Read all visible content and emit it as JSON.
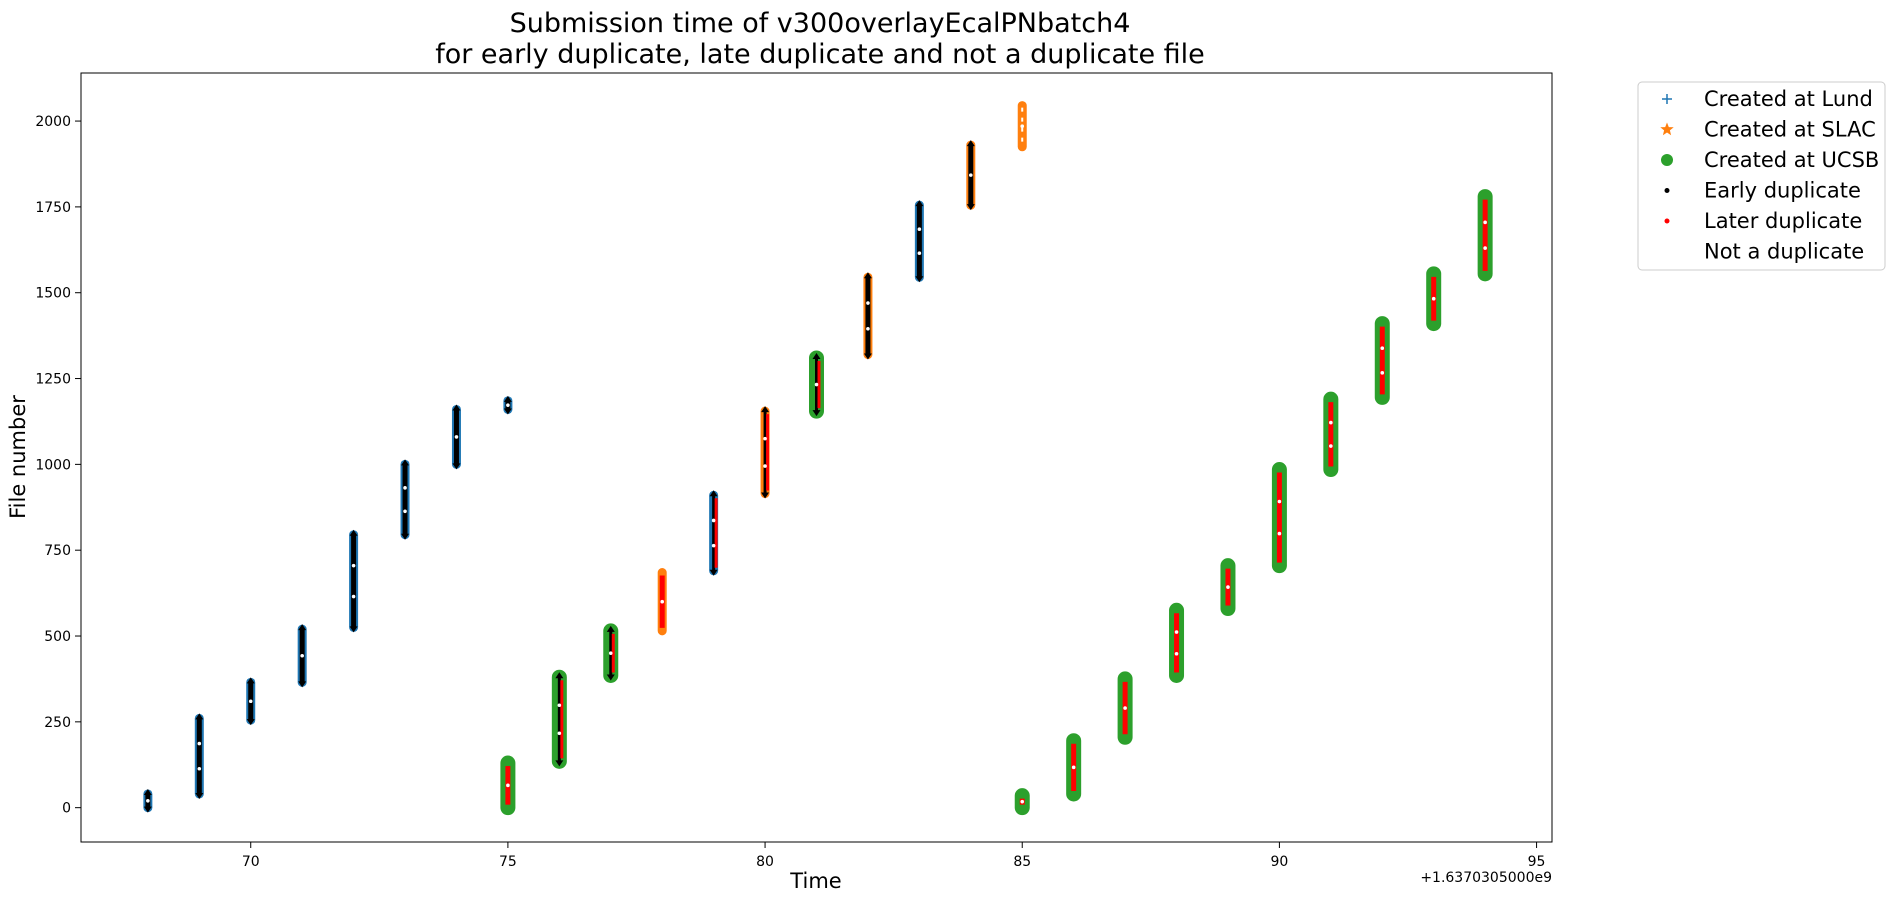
{
  "chart_data": {
    "type": "scatter",
    "title": "Submission time of v300overlayEcalPNbatch4",
    "subtitle": "for early duplicate, late duplicate and not a duplicate file",
    "xlabel": "Time",
    "ylabel": "File number",
    "x_offset_label": "+1.6370305000e9",
    "xlim": [
      66.7,
      95.3
    ],
    "ylim": [
      -100,
      2140
    ],
    "xticks": [
      70,
      75,
      80,
      85,
      90,
      95
    ],
    "yticks": [
      0,
      250,
      500,
      750,
      1000,
      1250,
      1500,
      1750,
      2000
    ],
    "grid": false,
    "legend_placement": "outside top-right",
    "legend": [
      {
        "label": "Created at Lund",
        "marker": "plus",
        "color": "#1f77b4"
      },
      {
        "label": "Created at SLAC",
        "marker": "star",
        "color": "#ff7f0e"
      },
      {
        "label": "Created at UCSB",
        "marker": "circle",
        "color": "#2ca02c"
      },
      {
        "label": "Early duplicate",
        "marker": "dot",
        "color": "#000000"
      },
      {
        "label": "Later duplicate",
        "marker": "dot",
        "color": "#ff0000"
      },
      {
        "label": "Not a duplicate",
        "marker": "dot",
        "color": "#ffffff"
      }
    ],
    "columns": [
      {
        "x": 68,
        "ymin": 0,
        "ymax": 40,
        "origin": "Lund",
        "dup": "early"
      },
      {
        "x": 69,
        "ymin": 40,
        "ymax": 260,
        "origin": "Lund",
        "dup": "early"
      },
      {
        "x": 70,
        "ymin": 255,
        "ymax": 365,
        "origin": "Lund",
        "dup": "early"
      },
      {
        "x": 71,
        "ymin": 365,
        "ymax": 520,
        "origin": "Lund",
        "dup": "early"
      },
      {
        "x": 72,
        "ymin": 525,
        "ymax": 795,
        "origin": "Lund",
        "dup": "early"
      },
      {
        "x": 73,
        "ymin": 795,
        "ymax": 1000,
        "origin": "Lund",
        "dup": "early"
      },
      {
        "x": 74,
        "ymin": 1000,
        "ymax": 1160,
        "origin": "Lund",
        "dup": "early"
      },
      {
        "x": 75,
        "ymin": 1160,
        "ymax": 1185,
        "origin": "Lund",
        "dup": "early"
      },
      {
        "x": 75,
        "ymin": 0,
        "ymax": 130,
        "origin": "UCSB",
        "dup": "later"
      },
      {
        "x": 76,
        "ymin": 135,
        "ymax": 380,
        "origin": "UCSB",
        "dup": "mixed"
      },
      {
        "x": 77,
        "ymin": 385,
        "ymax": 515,
        "origin": "UCSB",
        "dup": "mixed"
      },
      {
        "x": 78,
        "ymin": 515,
        "ymax": 685,
        "origin": "SLAC",
        "dup": "later"
      },
      {
        "x": 79,
        "ymin": 690,
        "ymax": 910,
        "origin": "Lund",
        "dup": "mixed"
      },
      {
        "x": 80,
        "ymin": 915,
        "ymax": 1155,
        "origin": "SLAC",
        "dup": "mixed"
      },
      {
        "x": 81,
        "ymin": 1155,
        "ymax": 1310,
        "origin": "UCSB",
        "dup": "mixed"
      },
      {
        "x": 82,
        "ymin": 1320,
        "ymax": 1545,
        "origin": "SLAC",
        "dup": "early"
      },
      {
        "x": 83,
        "ymin": 1545,
        "ymax": 1755,
        "origin": "Lund",
        "dup": "early"
      },
      {
        "x": 84,
        "ymin": 1755,
        "ymax": 1930,
        "origin": "SLAC",
        "dup": "early"
      },
      {
        "x": 85,
        "ymin": 1925,
        "ymax": 2045,
        "origin": "SLAC",
        "dup": "none"
      },
      {
        "x": 85,
        "ymin": 0,
        "ymax": 35,
        "origin": "UCSB",
        "dup": "later"
      },
      {
        "x": 86,
        "ymin": 40,
        "ymax": 195,
        "origin": "UCSB",
        "dup": "later"
      },
      {
        "x": 87,
        "ymin": 205,
        "ymax": 375,
        "origin": "UCSB",
        "dup": "later"
      },
      {
        "x": 88,
        "ymin": 385,
        "ymax": 575,
        "origin": "UCSB",
        "dup": "later"
      },
      {
        "x": 89,
        "ymin": 580,
        "ymax": 705,
        "origin": "UCSB",
        "dup": "later"
      },
      {
        "x": 90,
        "ymin": 705,
        "ymax": 985,
        "origin": "UCSB",
        "dup": "later"
      },
      {
        "x": 91,
        "ymin": 985,
        "ymax": 1190,
        "origin": "UCSB",
        "dup": "later"
      },
      {
        "x": 92,
        "ymin": 1195,
        "ymax": 1410,
        "origin": "UCSB",
        "dup": "later"
      },
      {
        "x": 93,
        "ymin": 1410,
        "ymax": 1555,
        "origin": "UCSB",
        "dup": "later"
      },
      {
        "x": 94,
        "ymin": 1555,
        "ymax": 1780,
        "origin": "UCSB",
        "dup": "later"
      }
    ]
  }
}
